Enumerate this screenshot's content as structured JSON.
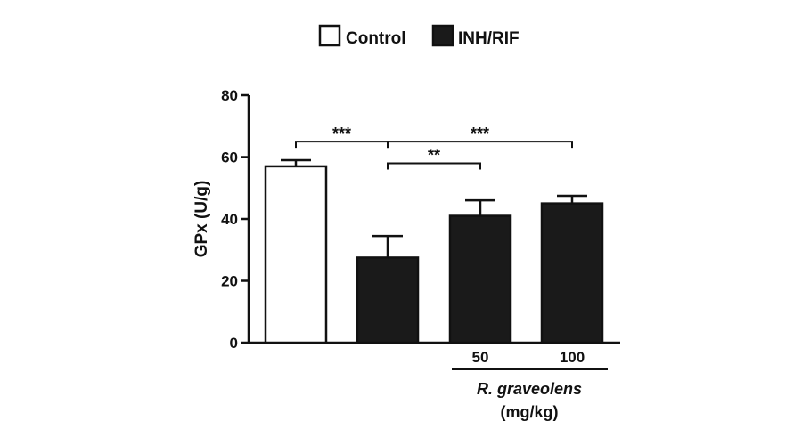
{
  "chart_data": {
    "type": "bar",
    "title": "",
    "xlabel": "",
    "ylabel": "GPx (U/g)",
    "ylim": [
      0,
      80
    ],
    "yticks": [
      0,
      20,
      40,
      60,
      80
    ],
    "grid": false,
    "legend": {
      "placement": "top-center",
      "entries": [
        {
          "label": "Control",
          "fill": "#ffffff"
        },
        {
          "label": "INH/RIF",
          "fill": "#1a1a1a"
        }
      ]
    },
    "categories": [
      "",
      "",
      "50",
      "100"
    ],
    "bars": [
      {
        "category": "",
        "group": "Control",
        "value": 57,
        "error": 2
      },
      {
        "category": "",
        "group": "INH/RIF",
        "value": 27.5,
        "error": 7
      },
      {
        "category": "50",
        "group": "INH/RIF",
        "value": 41,
        "error": 5
      },
      {
        "category": "100",
        "group": "INH/RIF",
        "value": 45,
        "error": 2.5
      }
    ],
    "group_label": {
      "line1": "R. graveolens",
      "line2": "(mg/kg)"
    },
    "significance": [
      {
        "from": 0,
        "to": 1,
        "label": "***",
        "level": 65
      },
      {
        "from": 1,
        "to": 3,
        "label": "***",
        "level": 65
      },
      {
        "from": 1,
        "to": 2,
        "label": "**",
        "level": 58
      }
    ]
  }
}
